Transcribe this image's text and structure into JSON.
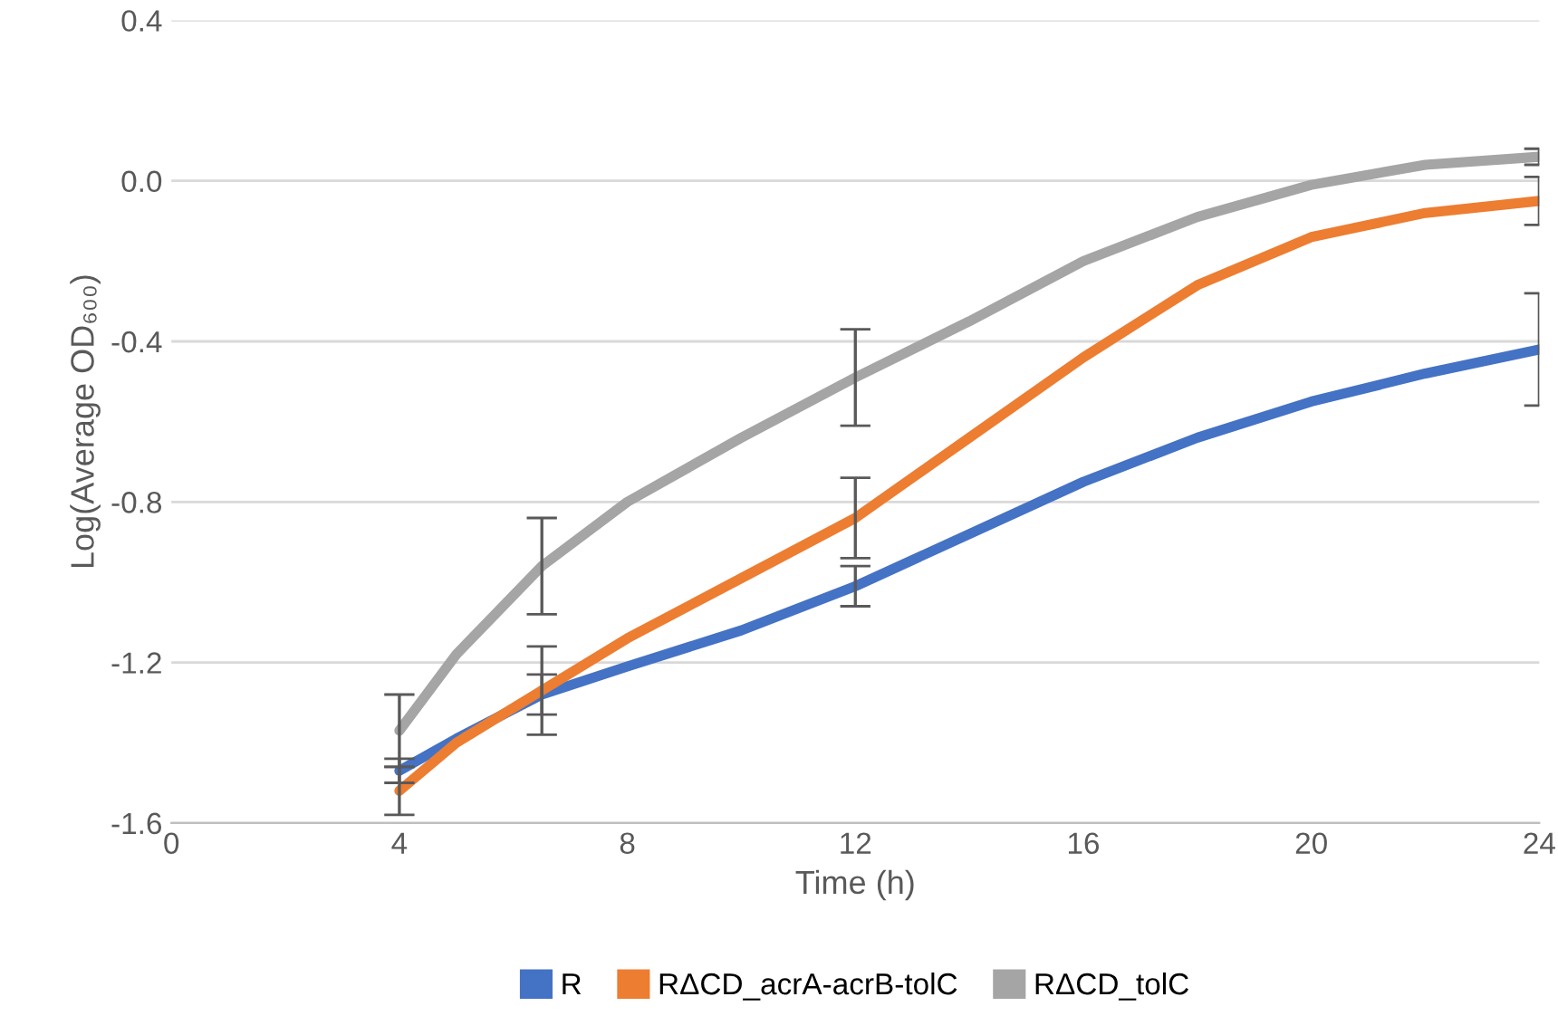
{
  "chart_data": {
    "type": "line",
    "xlabel": "Time (h)",
    "ylabel": "Log(Average OD₆₀₀)",
    "x": [
      4,
      5,
      6.5,
      8,
      10,
      12,
      14,
      16,
      18,
      20,
      22,
      24
    ],
    "series": [
      {
        "name": "R",
        "color": "#4472c4",
        "values": [
          -1.47,
          -1.39,
          -1.28,
          -1.21,
          -1.12,
          -1.01,
          -0.88,
          -0.75,
          -0.64,
          -0.55,
          -0.48,
          -0.42
        ],
        "errors": [
          0.03,
          null,
          0.05,
          null,
          null,
          0.05,
          null,
          null,
          null,
          null,
          null,
          0.14
        ]
      },
      {
        "name": "RΔCD_acrA-acrB-tolC",
        "color": "#ed7d31",
        "values": [
          -1.52,
          -1.4,
          -1.27,
          -1.14,
          -0.99,
          -0.84,
          -0.64,
          -0.44,
          -0.26,
          -0.14,
          -0.08,
          -0.05
        ],
        "errors": [
          0.06,
          null,
          0.11,
          null,
          null,
          0.1,
          null,
          null,
          null,
          null,
          null,
          0.06
        ]
      },
      {
        "name": "RΔCD_tolC",
        "color": "#a5a5a5",
        "values": [
          -1.37,
          -1.18,
          -0.96,
          -0.8,
          -0.64,
          -0.49,
          -0.35,
          -0.2,
          -0.09,
          -0.01,
          0.04,
          0.06
        ],
        "errors": [
          0.09,
          null,
          0.12,
          null,
          null,
          0.12,
          null,
          null,
          null,
          null,
          null,
          0.02
        ]
      }
    ],
    "xlim": [
      0,
      24
    ],
    "xticks": [
      0,
      4,
      8,
      12,
      16,
      20,
      24
    ],
    "ylim": [
      -1.6,
      0.4
    ],
    "yticks": [
      {
        "value": -1.6,
        "label": "-1.6"
      },
      {
        "value": -1.2,
        "label": "-1.2"
      },
      {
        "value": -0.8,
        "label": "-0.8"
      },
      {
        "value": -0.4,
        "label": "-0.4"
      },
      {
        "value": 0,
        "label": "0.0"
      },
      {
        "value": 0.4,
        "label": "0.4"
      }
    ],
    "grid": "y",
    "legend": "bottom",
    "marker": "none",
    "line_style": "solid"
  }
}
